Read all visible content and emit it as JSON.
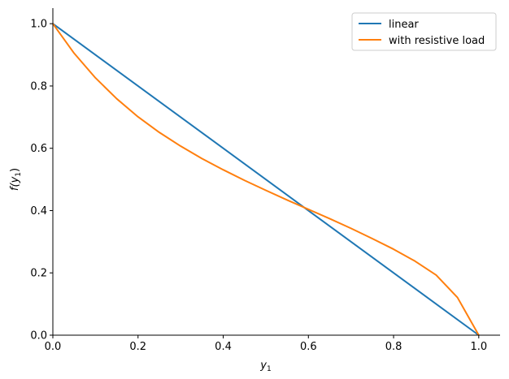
{
  "chart_data": {
    "type": "line",
    "xlabel": "y",
    "xlabel_sub": "1",
    "ylabel_prefix": "f(",
    "ylabel_var": "y",
    "ylabel_sub": "1",
    "ylabel_suffix": ")",
    "xlim": [
      0.0,
      1.05
    ],
    "ylim": [
      0.0,
      1.05
    ],
    "xticks": [
      0.0,
      0.2,
      0.4,
      0.6,
      0.8,
      1.0
    ],
    "xtick_labels": [
      "0.0",
      "0.2",
      "0.4",
      "0.6",
      "0.8",
      "1.0"
    ],
    "yticks": [
      0.0,
      0.2,
      0.4,
      0.6,
      0.8,
      1.0
    ],
    "ytick_labels": [
      "0.0",
      "0.2",
      "0.4",
      "0.6",
      "0.8",
      "1.0"
    ],
    "grid": false,
    "legend_position": "top-right",
    "series": [
      {
        "name": "linear",
        "color": "#1f77b4",
        "x": [
          0.0,
          1.0
        ],
        "y": [
          1.0,
          0.0
        ]
      },
      {
        "name": "with resistive load",
        "color": "#ff7f0e",
        "x": [
          0.0,
          0.05,
          0.1,
          0.15,
          0.2,
          0.25,
          0.3,
          0.35,
          0.4,
          0.45,
          0.5,
          0.55,
          0.6,
          0.65,
          0.7,
          0.75,
          0.8,
          0.85,
          0.9,
          0.95,
          1.0
        ],
        "y": [
          1.0,
          0.905,
          0.826,
          0.759,
          0.701,
          0.651,
          0.607,
          0.567,
          0.531,
          0.497,
          0.465,
          0.434,
          0.404,
          0.374,
          0.343,
          0.31,
          0.276,
          0.238,
          0.193,
          0.121,
          0.0
        ]
      }
    ]
  }
}
